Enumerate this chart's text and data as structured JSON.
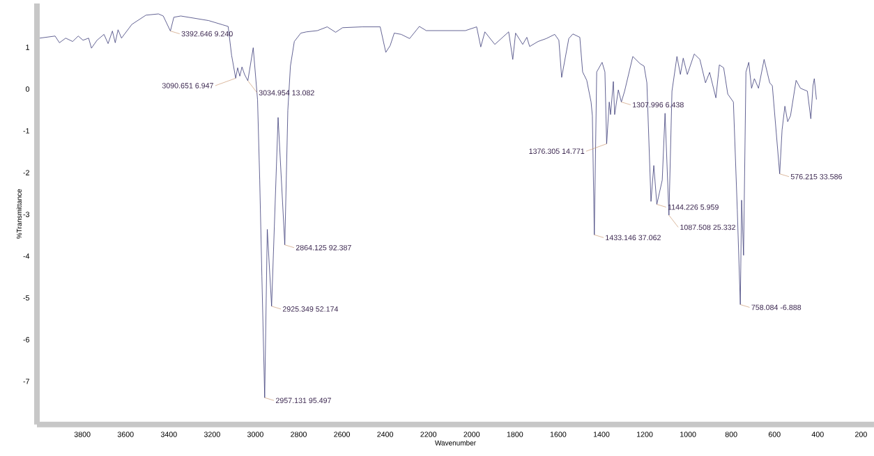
{
  "chart_data": {
    "type": "line",
    "xlabel": "Wavenumber",
    "ylabel": "%Transmittance",
    "color": "#3c3c78",
    "marker": "none",
    "grid": false,
    "xlim": [
      4010,
      140
    ],
    "ylim": [
      -8.03,
      2.05
    ],
    "xticks": [
      3800,
      3600,
      3400,
      3200,
      3000,
      2800,
      2600,
      2400,
      2200,
      2000,
      1800,
      1600,
      1400,
      1200,
      1000,
      800,
      600,
      400,
      200
    ],
    "yticks": [
      -7,
      -6,
      -5,
      -4,
      -3,
      -2,
      -1,
      0,
      1
    ],
    "x": [
      3997,
      3926,
      3906,
      3877,
      3845,
      3819,
      3797,
      3771,
      3758,
      3732,
      3700,
      3681,
      3661,
      3648,
      3635,
      3619,
      3571,
      3506,
      3448,
      3426,
      3393,
      3377,
      3345,
      3216,
      3152,
      3126,
      3110,
      3091,
      3082,
      3072,
      3062,
      3050,
      3035,
      3010,
      2990,
      2980,
      2970,
      2957,
      2945,
      2925,
      2895,
      2864,
      2850,
      2838,
      2820,
      2790,
      2764,
      2713,
      2668,
      2629,
      2597,
      2506,
      2423,
      2397,
      2377,
      2358,
      2326,
      2287,
      2242,
      2210,
      2029,
      1977,
      1958,
      1939,
      1893,
      1829,
      1810,
      1797,
      1764,
      1745,
      1732,
      1693,
      1655,
      1616,
      1597,
      1584,
      1551,
      1532,
      1500,
      1487,
      1468,
      1448,
      1442,
      1433,
      1422,
      1397,
      1384,
      1376,
      1364,
      1358,
      1345,
      1339,
      1322,
      1308,
      1293,
      1255,
      1222,
      1203,
      1190,
      1171,
      1158,
      1144,
      1119,
      1106,
      1088,
      1074,
      1051,
      1035,
      1022,
      1003,
      971,
      945,
      919,
      900,
      871,
      855,
      835,
      816,
      790,
      772,
      758,
      752,
      743,
      732,
      719,
      706,
      693,
      674,
      648,
      622,
      610,
      576,
      565,
      552,
      539,
      526,
      500,
      480,
      448,
      432,
      422,
      416,
      406
    ],
    "values": [
      1.22,
      1.27,
      1.11,
      1.22,
      1.14,
      1.27,
      1.17,
      1.22,
      0.98,
      1.17,
      1.31,
      1.09,
      1.39,
      1.11,
      1.42,
      1.22,
      1.55,
      1.77,
      1.8,
      1.75,
      1.39,
      1.72,
      1.75,
      1.64,
      1.54,
      1.5,
      0.81,
      0.26,
      0.51,
      0.31,
      0.53,
      0.35,
      0.2,
      0.99,
      -0.26,
      -2.17,
      -4.48,
      -7.39,
      -3.36,
      -5.2,
      -0.68,
      -3.73,
      -0.51,
      0.55,
      1.14,
      1.34,
      1.37,
      1.4,
      1.49,
      1.36,
      1.47,
      1.49,
      1.49,
      0.88,
      1.04,
      1.34,
      1.31,
      1.21,
      1.5,
      1.4,
      1.4,
      1.49,
      1.01,
      1.37,
      1.07,
      1.37,
      0.71,
      1.34,
      1.07,
      1.24,
      1.02,
      1.14,
      1.21,
      1.31,
      1.17,
      0.28,
      1.21,
      1.32,
      1.24,
      0.41,
      0.21,
      -0.31,
      -0.64,
      -3.49,
      0.41,
      0.64,
      0.41,
      -1.31,
      -0.31,
      -0.61,
      0.18,
      -0.61,
      -0.02,
      -0.31,
      -0.05,
      0.78,
      0.61,
      0.55,
      0.15,
      -2.69,
      -1.83,
      -2.76,
      -2.18,
      -0.58,
      -3.02,
      -0.05,
      0.78,
      0.35,
      0.74,
      0.35,
      0.84,
      0.71,
      0.15,
      0.4,
      -0.21,
      0.58,
      0.51,
      -0.12,
      -0.31,
      -2.89,
      -5.16,
      -2.66,
      -3.98,
      0.41,
      0.64,
      0.02,
      0.25,
      0.02,
      0.71,
      0.15,
      0.08,
      -2.03,
      -0.98,
      -0.41,
      -0.78,
      -0.64,
      0.21,
      0.02,
      -0.05,
      -0.71,
      0.08,
      0.25,
      -0.25
    ],
    "annotations": [
      {
        "text": "3392.646 9.240",
        "x": 3393,
        "y": 1.39
      },
      {
        "text": "3090.651 6.947",
        "x": 3091,
        "y": 0.26
      },
      {
        "text": "3034.954 13.082",
        "x": 3035,
        "y": 0.2
      },
      {
        "text": "2957.131 95.497",
        "x": 2957,
        "y": -7.39
      },
      {
        "text": "2925.349 52.174",
        "x": 2925,
        "y": -5.2
      },
      {
        "text": "2864.125 92.387",
        "x": 2864,
        "y": -3.73
      },
      {
        "text": "1433.146 37.062",
        "x": 1433,
        "y": -3.49
      },
      {
        "text": "1376.305 14.771",
        "x": 1376,
        "y": -1.31
      },
      {
        "text": "1307.996 6.438",
        "x": 1308,
        "y": -0.31
      },
      {
        "text": "1144.226 5.959",
        "x": 1144,
        "y": -2.76
      },
      {
        "text": "1087.508 25.332",
        "x": 1088,
        "y": -3.02
      },
      {
        "text": "758.084 -6.888",
        "x": 758,
        "y": -5.16
      },
      {
        "text": "576.215 33.586",
        "x": 576,
        "y": -2.03
      }
    ]
  }
}
